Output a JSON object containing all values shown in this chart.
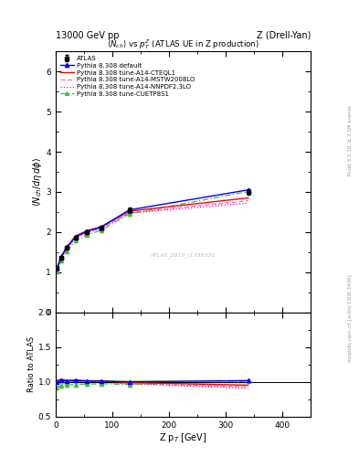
{
  "title_left": "13000 GeV pp",
  "title_right": "Z (Drell-Yan)",
  "plot_title": "<N_{ch}> vs p_{T}^{Z} (ATLAS UE in Z production)",
  "ylabel_main": "<N_{ch}/dη dφ>",
  "ylabel_ratio": "Ratio to ATLAS",
  "xlabel": "Z p_{T} [GeV]",
  "right_label_top": "Rivet 3.1.10, ≥ 3.1M events",
  "right_label_bot": "mcplots.cern.ch [arXiv:1306.3436]",
  "watermark": "ATLAS_2019_I1736531",
  "xlim": [
    0,
    450
  ],
  "ylim_main": [
    0,
    6.5
  ],
  "ylim_ratio": [
    0.5,
    2.0
  ],
  "atlas_x": [
    2.5,
    10,
    20,
    35,
    55,
    80,
    130,
    340
  ],
  "atlas_y": [
    1.1,
    1.35,
    1.6,
    1.85,
    2.0,
    2.1,
    2.55,
    3.0
  ],
  "atlas_yerr": [
    0.03,
    0.04,
    0.04,
    0.04,
    0.04,
    0.04,
    0.05,
    0.06
  ],
  "default_y": [
    1.1,
    1.38,
    1.62,
    1.88,
    2.02,
    2.12,
    2.55,
    3.05
  ],
  "cteql1_y": [
    1.12,
    1.4,
    1.63,
    1.9,
    2.03,
    2.13,
    2.52,
    2.85
  ],
  "mstw_y": [
    1.1,
    1.37,
    1.6,
    1.86,
    1.99,
    2.1,
    2.48,
    2.78
  ],
  "nnpdf_y": [
    1.09,
    1.36,
    1.59,
    1.85,
    1.99,
    2.09,
    2.47,
    2.72
  ],
  "cuetp_y": [
    1.01,
    1.28,
    1.52,
    1.78,
    1.93,
    2.04,
    2.45,
    3.01
  ],
  "color_atlas": "black",
  "color_default": "blue",
  "color_cteql1": "red",
  "color_mstw": "#ff69b4",
  "color_nnpdf": "#ee00ee",
  "color_cuetp": "#44bb44",
  "band_color": "#bbff88"
}
